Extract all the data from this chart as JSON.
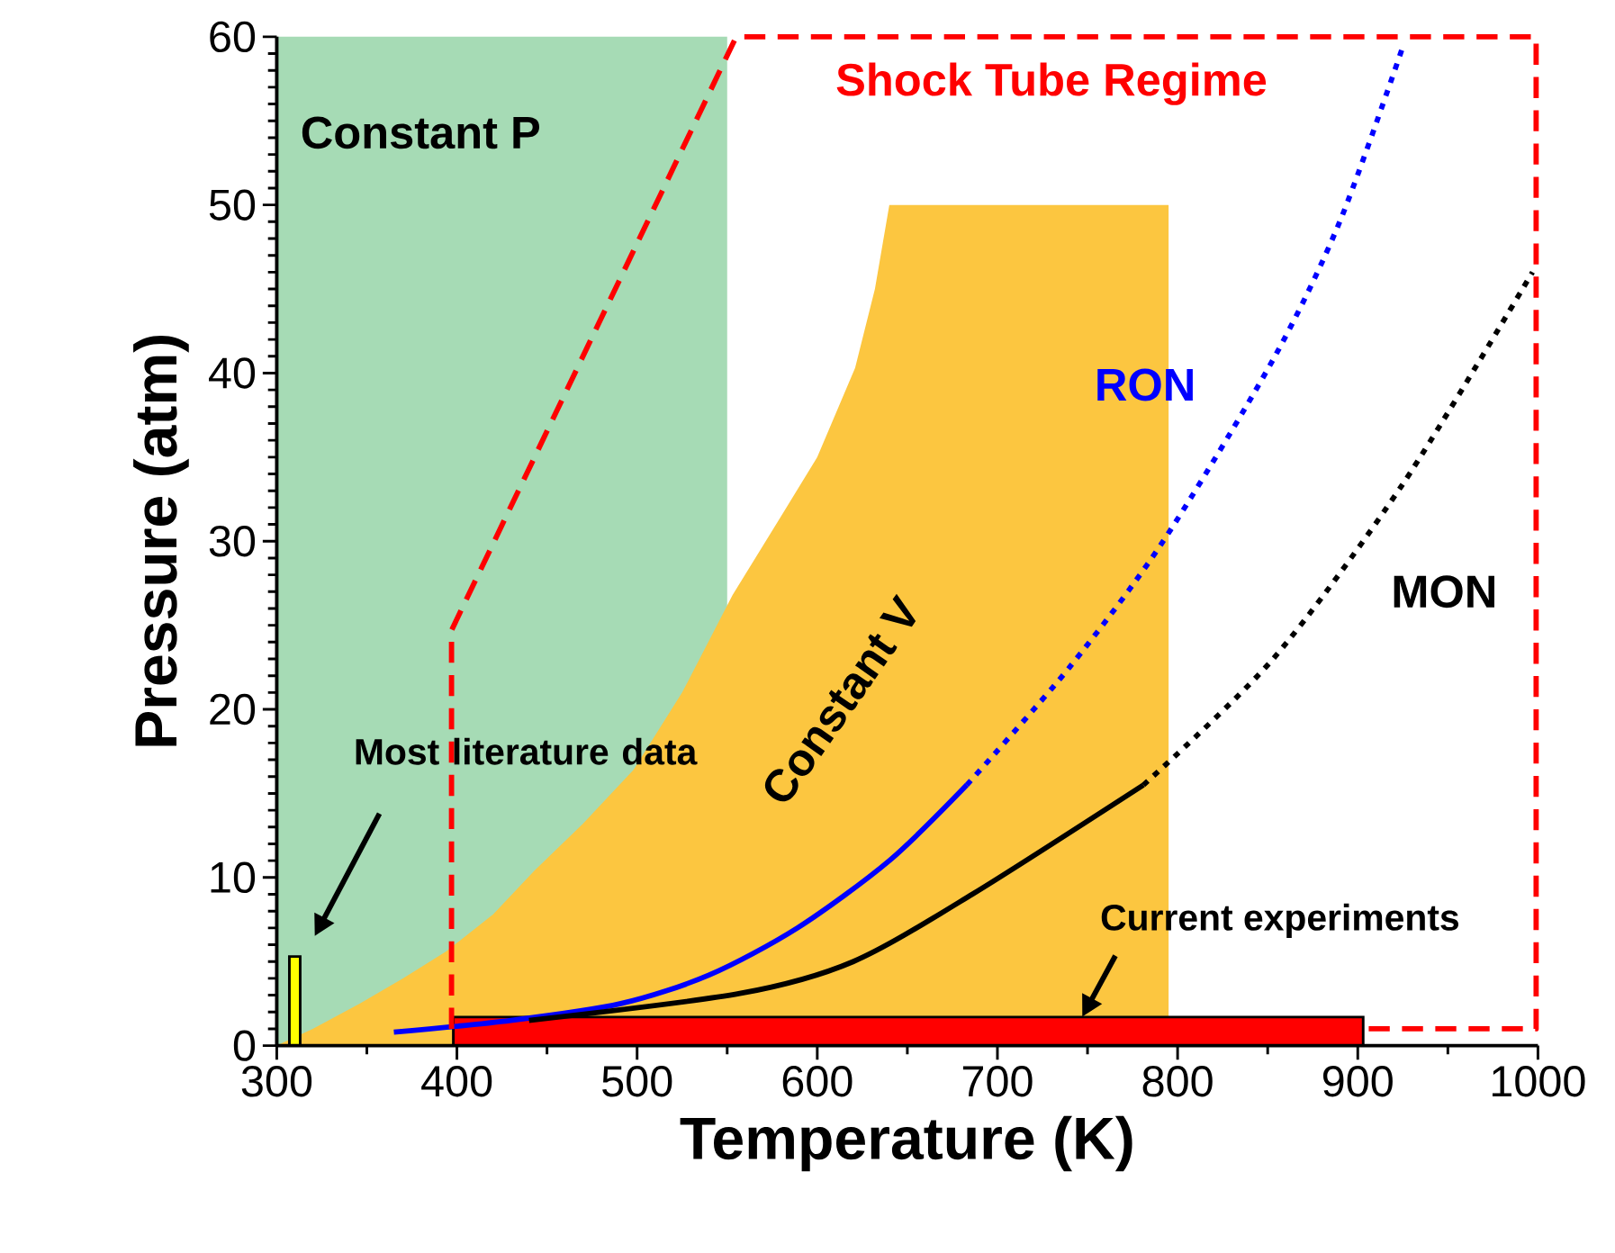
{
  "chart_data": {
    "type": "line",
    "xlabel": "Temperature (K)",
    "ylabel": "Pressure (atm)",
    "xlim": [
      300,
      1000
    ],
    "ylim": [
      0,
      60
    ],
    "xticks": [
      300,
      400,
      500,
      600,
      700,
      800,
      900,
      1000
    ],
    "yticks": [
      0,
      10,
      20,
      30,
      40,
      50,
      60
    ],
    "grid": false,
    "bands": [
      {
        "axis": "x",
        "from": 300,
        "to": 550,
        "label": "Constant P",
        "color": "#a6dbb5"
      }
    ],
    "series": [
      {
        "name": "Constant V",
        "type": "area",
        "color": "#fcc640",
        "x": [
          300,
          320,
          346,
          370,
          394,
          420,
          443,
          470,
          498,
          525,
          553,
          580,
          600,
          621,
          632,
          640,
          795,
          795
        ],
        "values": [
          0,
          1,
          2.5,
          4,
          5.6,
          7.8,
          10.4,
          13.2,
          16.4,
          21,
          26.8,
          31.5,
          35,
          40.3,
          45,
          50,
          50,
          0
        ]
      },
      {
        "type": "area",
        "color": "#ffff00",
        "line_style": "solid",
        "x": [
          307,
          313
        ],
        "values": [
          5.3,
          5.3
        ]
      },
      {
        "type": "area",
        "color": "#ff0000",
        "line_style": "solid",
        "x": [
          398,
          903
        ],
        "values": [
          1.7,
          1.7
        ]
      },
      {
        "name": "RON",
        "color": "#0000ff",
        "line_style": "solid",
        "x": [
          365,
          430,
          491,
          540,
          589,
          640,
          683
        ],
        "values": [
          0.8,
          1.5,
          2.5,
          4.2,
          7,
          11,
          15.5
        ]
      },
      {
        "color": "#0000ff",
        "line_style": "dotted",
        "x": [
          683,
          740,
          792,
          853,
          890,
          925
        ],
        "values": [
          15.5,
          22.5,
          30,
          40.8,
          49,
          59.4
        ]
      },
      {
        "name": "MON",
        "color": "#000000",
        "line_style": "solid",
        "x": [
          440,
          557,
          620,
          686,
          781
        ],
        "values": [
          1.5,
          3.1,
          5,
          9,
          15.5
        ]
      },
      {
        "color": "#000000",
        "line_style": "dotted",
        "x": [
          781,
          853,
          925,
          997
        ],
        "values": [
          15.5,
          23,
          33.4,
          46
        ]
      },
      {
        "name": "Shock Tube Regime",
        "color": "#ff0000",
        "line_style": "dashed",
        "x": [
          397,
          397,
          555,
          999,
          999,
          906
        ],
        "values": [
          1,
          24.7,
          60,
          60,
          1,
          1
        ]
      }
    ],
    "annotations": [
      "Most literature data",
      {
        "text": "Current experiments",
        "x": 747,
        "y": 1.7
      }
    ]
  }
}
